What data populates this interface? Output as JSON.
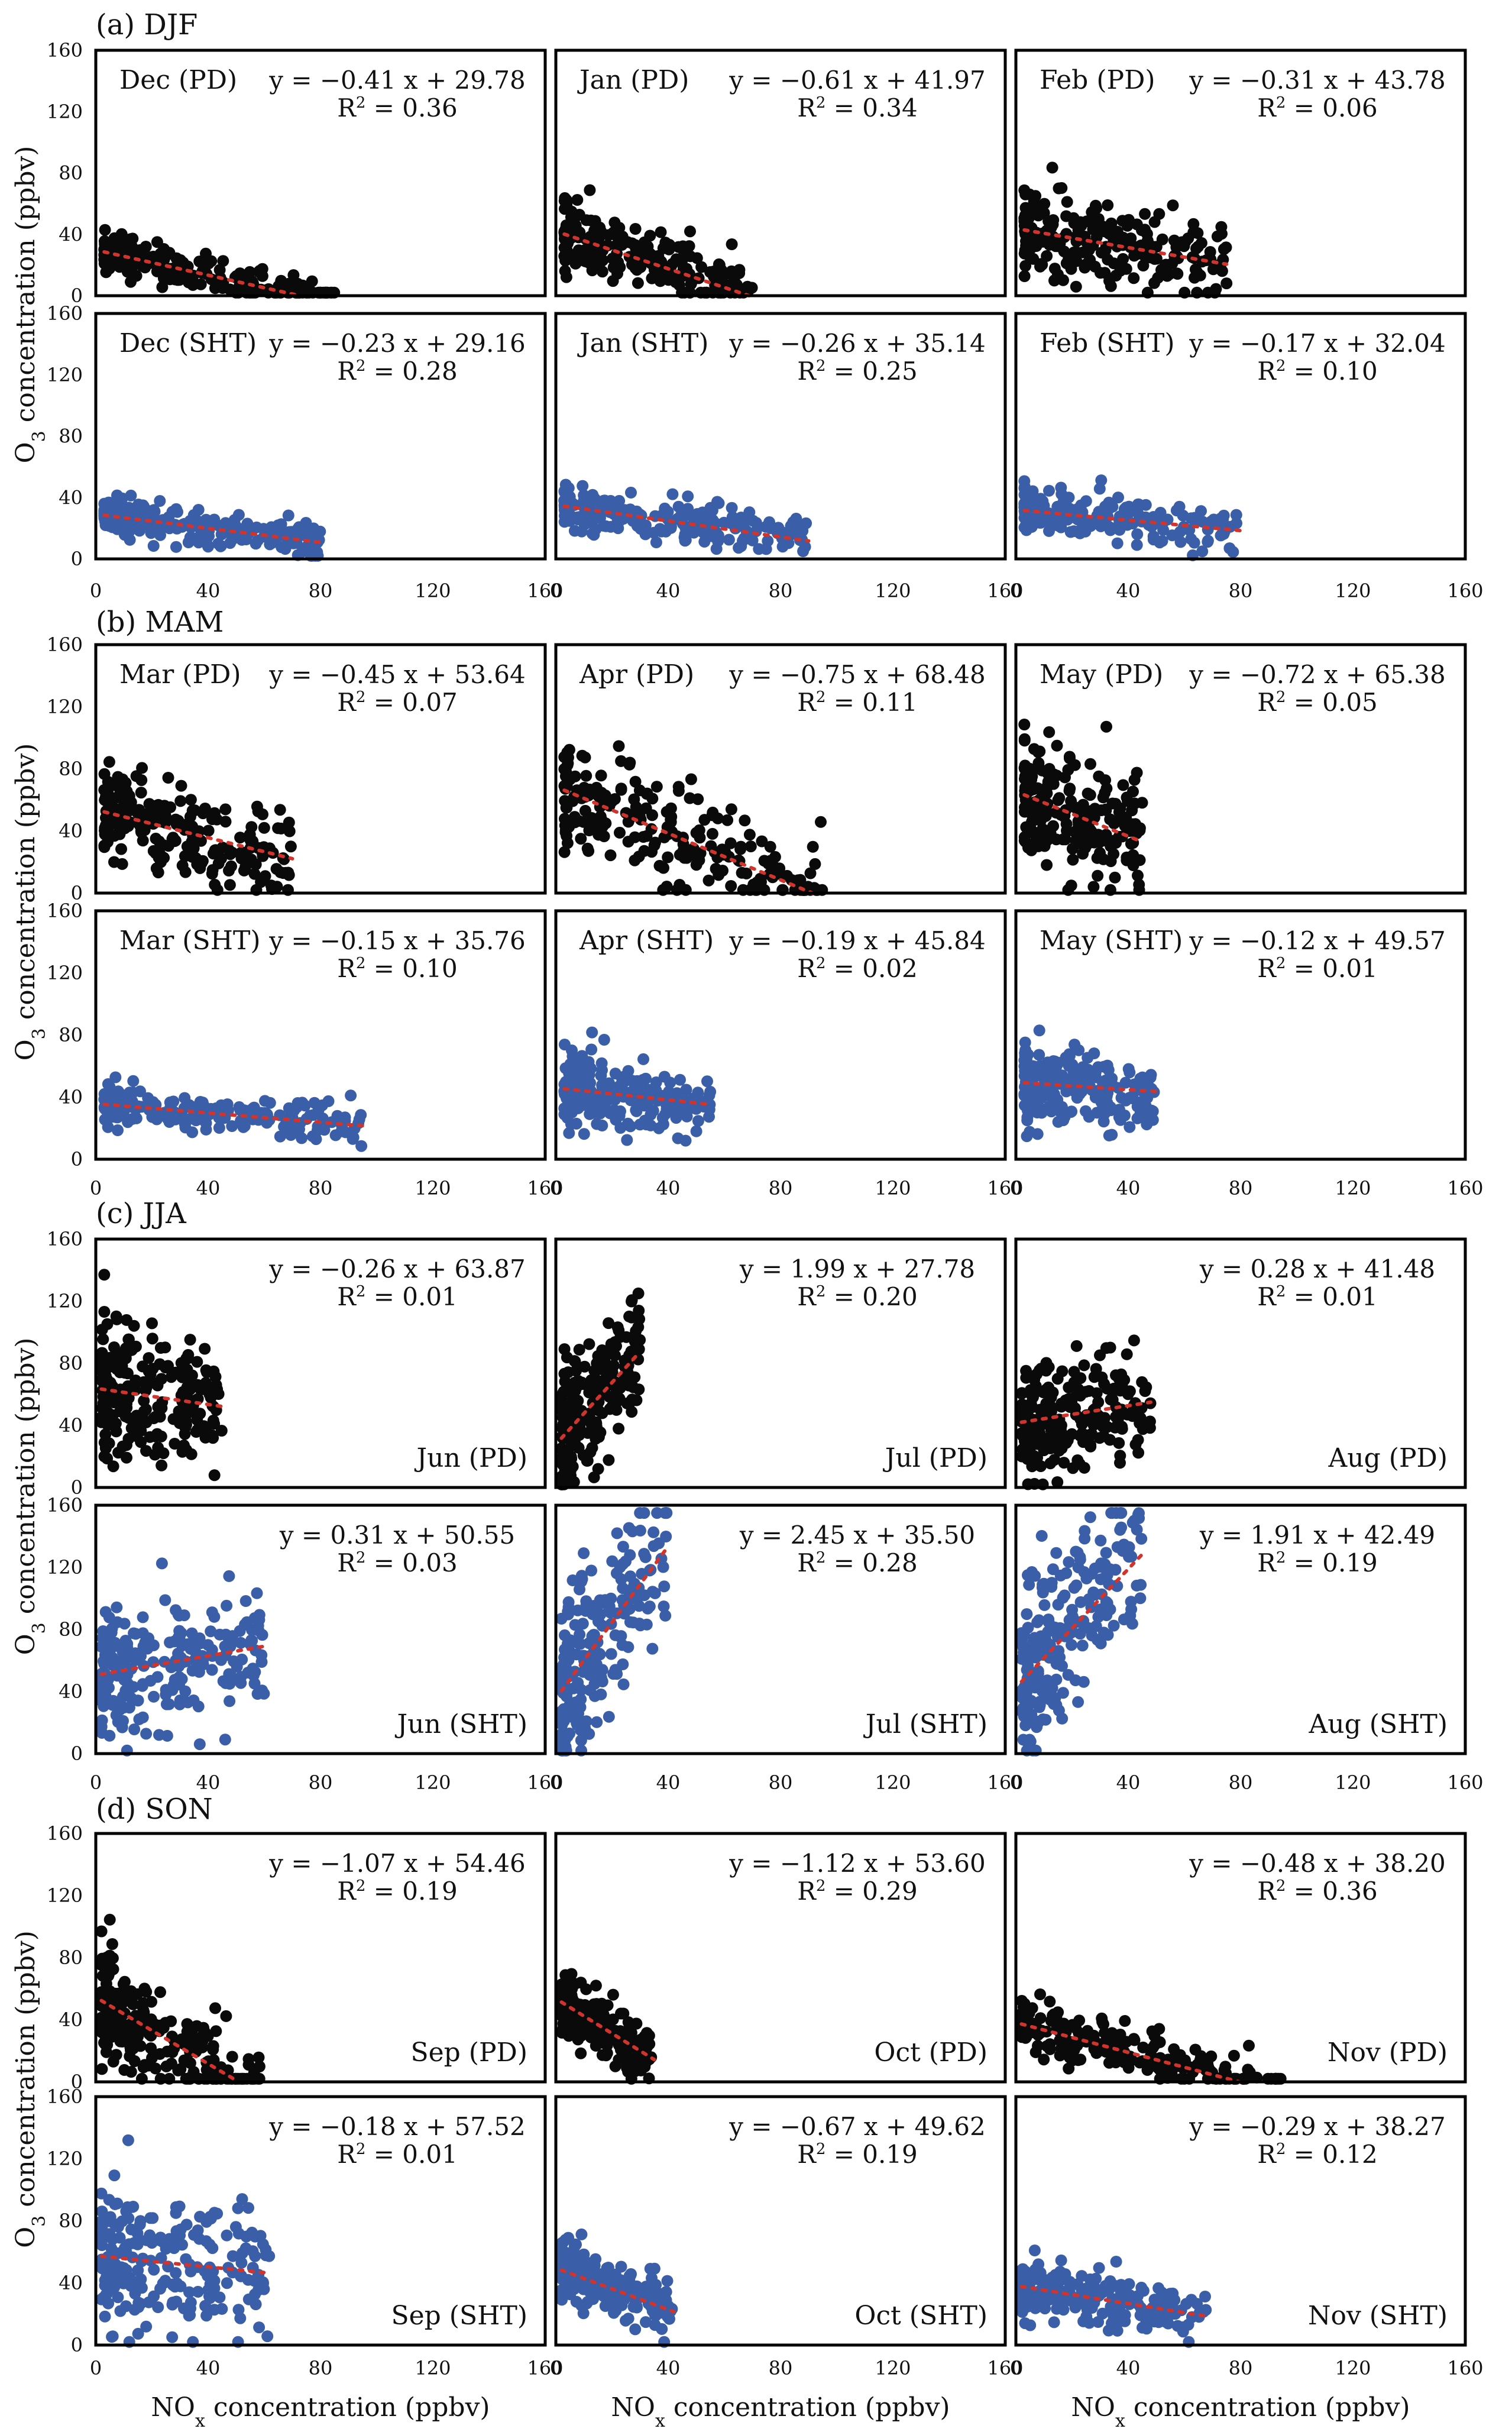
{
  "colors": {
    "pd": "#0a0a0a",
    "sht": "#3a5ea8",
    "trend": "#d0342c"
  },
  "axis": {
    "x_ticks": [
      "0",
      "40",
      "80",
      "120",
      "160"
    ],
    "y_ticks": [
      "0",
      "40",
      "80",
      "120",
      "160"
    ],
    "x_title_main": "NO",
    "x_title_sub": "x",
    "x_title_rest": " concentration (ppbv)",
    "y_title_main": "O",
    "y_title_sub": "3",
    "y_title_rest": " concentration (ppbv)"
  },
  "chart_data": [
    {
      "title": "(a) DJF",
      "type": "scatter",
      "xlim": [
        0,
        160
      ],
      "ylim": [
        0,
        160
      ],
      "panels": [
        {
          "label": "Dec (PD)",
          "kind": "PD",
          "slope": -0.41,
          "intercept": 29.78,
          "eq": "y =  −0.41 x + 29.78",
          "r2": "0.36",
          "x_range": [
            3,
            85
          ],
          "y_spread": 6
        },
        {
          "label": "Jan (PD)",
          "kind": "PD",
          "slope": -0.61,
          "intercept": 41.97,
          "eq": "y =  −0.61 x + 41.97",
          "r2": "0.34",
          "x_range": [
            3,
            70
          ],
          "y_spread": 11
        },
        {
          "label": "Feb (PD)",
          "kind": "PD",
          "slope": -0.31,
          "intercept": 43.78,
          "eq": "y =  −0.31 x + 43.78",
          "r2": "0.06",
          "x_range": [
            3,
            75
          ],
          "y_spread": 15
        },
        {
          "label": "Dec (SHT)",
          "kind": "SHT",
          "slope": -0.23,
          "intercept": 29.16,
          "eq": "y =  −0.23 x + 29.16",
          "r2": "0.28",
          "x_range": [
            3,
            80
          ],
          "y_spread": 6
        },
        {
          "label": "Jan (SHT)",
          "kind": "SHT",
          "slope": -0.26,
          "intercept": 35.14,
          "eq": "y =  −0.26 x + 35.14",
          "r2": "0.25",
          "x_range": [
            3,
            90
          ],
          "y_spread": 7
        },
        {
          "label": "Feb (SHT)",
          "kind": "SHT",
          "slope": -0.17,
          "intercept": 32.04,
          "eq": "y =  −0.17 x + 32.04",
          "r2": "0.10",
          "x_range": [
            3,
            80
          ],
          "y_spread": 7
        }
      ]
    },
    {
      "title": "(b) MAM",
      "type": "scatter",
      "xlim": [
        0,
        160
      ],
      "ylim": [
        0,
        160
      ],
      "panels": [
        {
          "label": "Mar (PD)",
          "kind": "PD",
          "slope": -0.45,
          "intercept": 53.64,
          "eq": "y =  −0.45 x + 53.64",
          "r2": "0.07",
          "x_range": [
            3,
            70
          ],
          "y_spread": 14
        },
        {
          "label": "Apr (PD)",
          "kind": "PD",
          "slope": -0.75,
          "intercept": 68.48,
          "eq": "y =  −0.75 x + 68.48",
          "r2": "0.11",
          "x_range": [
            3,
            95
          ],
          "y_spread": 18
        },
        {
          "label": "May (PD)",
          "kind": "PD",
          "slope": -0.72,
          "intercept": 65.38,
          "eq": "y =  −0.72 x + 65.38",
          "r2": "0.05",
          "x_range": [
            3,
            45
          ],
          "y_spread": 20
        },
        {
          "label": "Mar (SHT)",
          "kind": "SHT",
          "slope": -0.15,
          "intercept": 35.76,
          "eq": "y =  −0.15 x + 35.76",
          "r2": "0.10",
          "x_range": [
            3,
            95
          ],
          "y_spread": 6
        },
        {
          "label": "Apr (SHT)",
          "kind": "SHT",
          "slope": -0.19,
          "intercept": 45.84,
          "eq": "y =  −0.19 x + 45.84",
          "r2": "0.02",
          "x_range": [
            3,
            55
          ],
          "y_spread": 11
        },
        {
          "label": "May (SHT)",
          "kind": "SHT",
          "slope": -0.12,
          "intercept": 49.57,
          "eq": "y =  −0.12 x + 49.57",
          "r2": "0.01",
          "x_range": [
            3,
            50
          ],
          "y_spread": 13
        }
      ]
    },
    {
      "title": "(c) JJA",
      "type": "scatter",
      "xlim": [
        0,
        160
      ],
      "ylim": [
        0,
        160
      ],
      "panels": [
        {
          "label": "Jun (PD)",
          "kind": "PD",
          "slope": -0.26,
          "intercept": 63.87,
          "eq": "y =  −0.26 x + 63.87",
          "r2": "0.01",
          "x_range": [
            2,
            45
          ],
          "y_spread": 22
        },
        {
          "label": "Jul (PD)",
          "kind": "PD",
          "slope": 1.99,
          "intercept": 27.78,
          "eq": "y = 1.99 x + 27.78",
          "r2": "0.20",
          "x_range": [
            2,
            30
          ],
          "y_spread": 20
        },
        {
          "label": "Aug (PD)",
          "kind": "PD",
          "slope": 0.28,
          "intercept": 41.48,
          "eq": "y = 0.28 x + 41.48",
          "r2": "0.01",
          "x_range": [
            2,
            48
          ],
          "y_spread": 18
        },
        {
          "label": "Jun (SHT)",
          "kind": "SHT",
          "slope": 0.31,
          "intercept": 50.55,
          "eq": "y = 0.31 x + 50.55",
          "r2": "0.03",
          "x_range": [
            2,
            60
          ],
          "y_spread": 20
        },
        {
          "label": "Jul (SHT)",
          "kind": "SHT",
          "slope": 2.45,
          "intercept": 35.5,
          "eq": "y = 2.45 x + 35.50",
          "r2": "0.28",
          "x_range": [
            2,
            40
          ],
          "y_spread": 28
        },
        {
          "label": "Aug (SHT)",
          "kind": "SHT",
          "slope": 1.91,
          "intercept": 42.49,
          "eq": "y = 1.91 x + 42.49",
          "r2": "0.19",
          "x_range": [
            2,
            45
          ],
          "y_spread": 26
        }
      ]
    },
    {
      "title": "(d) SON",
      "type": "scatter",
      "xlim": [
        0,
        160
      ],
      "ylim": [
        0,
        160
      ],
      "panels": [
        {
          "label": "Sep (PD)",
          "kind": "PD",
          "slope": -1.07,
          "intercept": 54.46,
          "eq": "y =  −1.07 x + 54.46",
          "r2": "0.19",
          "x_range": [
            2,
            60
          ],
          "y_spread": 18
        },
        {
          "label": "Oct (PD)",
          "kind": "PD",
          "slope": -1.12,
          "intercept": 53.6,
          "eq": "y =  −1.12 x + 53.60",
          "r2": "0.29",
          "x_range": [
            2,
            35
          ],
          "y_spread": 10
        },
        {
          "label": "Nov (PD)",
          "kind": "PD",
          "slope": -0.48,
          "intercept": 38.2,
          "eq": "y =  −0.48 x + 38.20",
          "r2": "0.36",
          "x_range": [
            2,
            95
          ],
          "y_spread": 8
        },
        {
          "label": "Sep (SHT)",
          "kind": "SHT",
          "slope": -0.18,
          "intercept": 57.52,
          "eq": "y =  −0.18 x + 57.52",
          "r2": "0.01",
          "x_range": [
            2,
            62
          ],
          "y_spread": 22
        },
        {
          "label": "Oct (SHT)",
          "kind": "SHT",
          "slope": -0.67,
          "intercept": 49.62,
          "eq": "y =  −0.67 x + 49.62",
          "r2": "0.19",
          "x_range": [
            2,
            42
          ],
          "y_spread": 9
        },
        {
          "label": "Nov (SHT)",
          "kind": "SHT",
          "slope": -0.29,
          "intercept": 38.27,
          "eq": "y =  −0.29 x + 38.27",
          "r2": "0.12",
          "x_range": [
            2,
            68
          ],
          "y_spread": 9
        }
      ]
    }
  ]
}
